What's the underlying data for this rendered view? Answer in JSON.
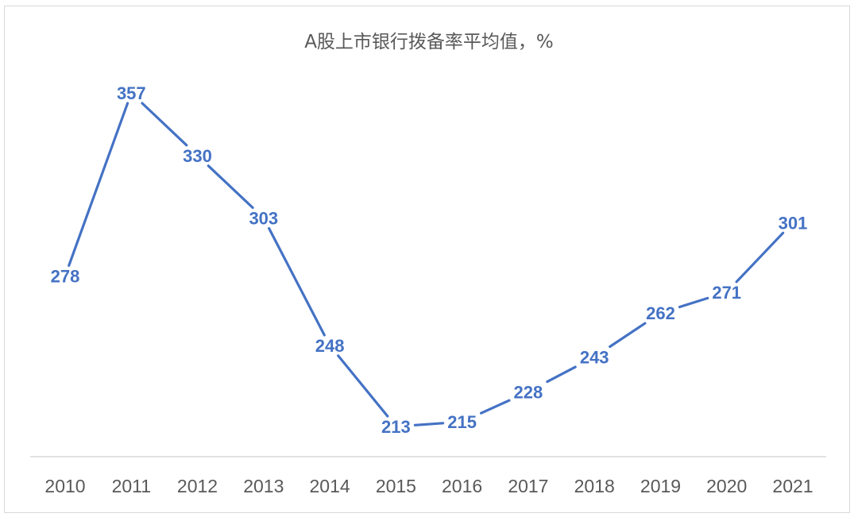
{
  "chart_data": {
    "type": "line",
    "title": "A股上市银行拨备率平均值，%",
    "xlabel": "",
    "ylabel": "",
    "categories": [
      "2010",
      "2011",
      "2012",
      "2013",
      "2014",
      "2015",
      "2016",
      "2017",
      "2018",
      "2019",
      "2020",
      "2021"
    ],
    "series": [
      {
        "values": [
          278,
          357,
          330,
          303,
          248,
          213,
          215,
          228,
          243,
          262,
          271,
          301
        ],
        "color": "#4472c4"
      }
    ],
    "ylim": [
      180,
      380
    ],
    "grid": false,
    "legend": "none",
    "data_labels": true
  }
}
